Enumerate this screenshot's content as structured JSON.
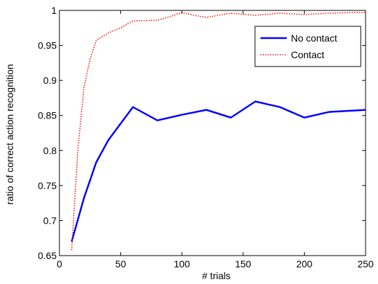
{
  "chart_data": {
    "type": "line",
    "title": "",
    "xlabel": "# trials",
    "ylabel": "ratio of correct action recognition",
    "xlim": [
      0,
      250
    ],
    "ylim": [
      0.65,
      1
    ],
    "xticks": [
      0,
      50,
      100,
      150,
      200,
      250
    ],
    "yticks": [
      0.65,
      0.7,
      0.75,
      0.8,
      0.85,
      0.9,
      0.95,
      1
    ],
    "xtick_labels": [
      "0",
      "50",
      "100",
      "150",
      "200",
      "250"
    ],
    "ytick_labels": [
      "0.65",
      "0.7",
      "0.75",
      "0.8",
      "0.85",
      "0.9",
      "0.95",
      "1"
    ],
    "grid": false,
    "legend_position": "top-right",
    "series": [
      {
        "name": "No contact",
        "color": "#0000ff",
        "style": "solid",
        "x": [
          10,
          20,
          30,
          40,
          60,
          80,
          100,
          120,
          140,
          160,
          180,
          200,
          220,
          250
        ],
        "y": [
          0.67,
          0.732,
          0.783,
          0.815,
          0.862,
          0.843,
          0.851,
          0.858,
          0.847,
          0.87,
          0.862,
          0.847,
          0.855,
          0.858
        ]
      },
      {
        "name": "Contact",
        "color": "#ff0000",
        "style": "dotted",
        "x": [
          10,
          15,
          20,
          25,
          30,
          40,
          50,
          60,
          80,
          90,
          100,
          110,
          120,
          140,
          160,
          180,
          200,
          220,
          240,
          250
        ],
        "y": [
          0.658,
          0.8,
          0.89,
          0.93,
          0.957,
          0.968,
          0.975,
          0.985,
          0.986,
          0.991,
          0.997,
          0.993,
          0.99,
          0.996,
          0.993,
          0.996,
          0.994,
          0.996,
          0.997,
          0.997
        ]
      }
    ]
  }
}
